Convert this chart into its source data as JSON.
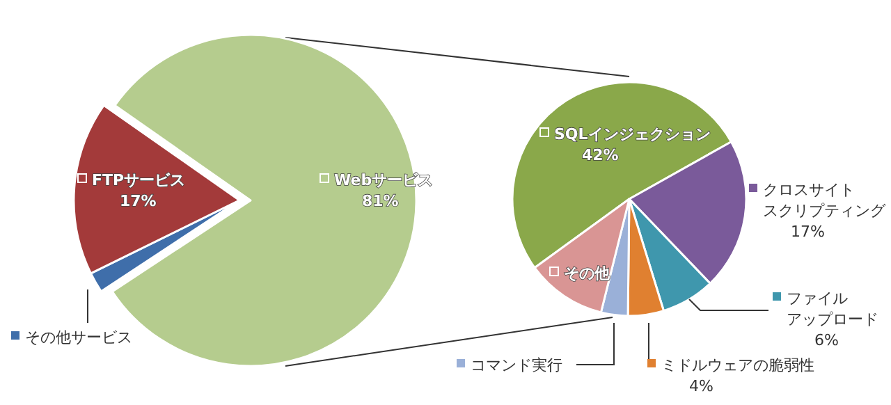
{
  "chart_data": [
    {
      "type": "pie",
      "categories": [
        "Webサービス",
        "その他サービス",
        "FTPサービス"
      ],
      "values": [
        81,
        2,
        17
      ],
      "colors": [
        "#b5cc8e",
        "#3f6eaa",
        "#a33a3a"
      ],
      "value_labels": [
        "81%",
        null,
        "17%"
      ]
    },
    {
      "type": "pie",
      "categories": [
        "SQLインジェクション",
        "クロスサイトスクリプティング",
        "ファイルアップロード",
        "ミドルウェアの脆弱性",
        "コマンド実行",
        "その他"
      ],
      "values": [
        42,
        17,
        6,
        4,
        3,
        9
      ],
      "colors": [
        "#8aa84a",
        "#7a5a9a",
        "#3f97ad",
        "#e08030",
        "#9ab0d8",
        "#d99594"
      ],
      "value_labels": [
        "42%",
        "17%",
        "6%",
        "4%",
        null,
        null
      ],
      "legend": "right"
    }
  ]
}
